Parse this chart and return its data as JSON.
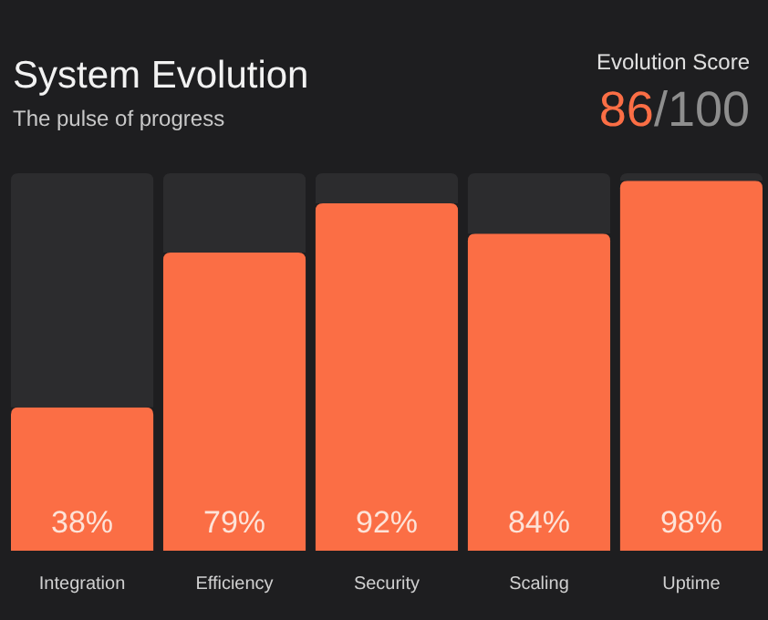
{
  "chart_data": {
    "type": "bar",
    "title": "System Evolution",
    "subtitle": "The pulse of progress",
    "annotations": [
      "Evolution Score",
      "86",
      "/100"
    ],
    "categories": [
      "Integration",
      "Efficiency",
      "Security",
      "Scaling",
      "Uptime"
    ],
    "stacked": true,
    "ylim": [
      0,
      100
    ],
    "tick_labels": "x",
    "series": [
      {
        "color": "#fb6e45",
        "values": [
          38,
          79,
          92,
          84,
          98
        ],
        "value_labels": [
          "38%",
          "79%",
          "92%",
          "84%",
          "98%"
        ]
      },
      {
        "color": "#2c2c2e",
        "values": [
          62,
          21,
          8,
          16,
          2
        ]
      }
    ]
  }
}
